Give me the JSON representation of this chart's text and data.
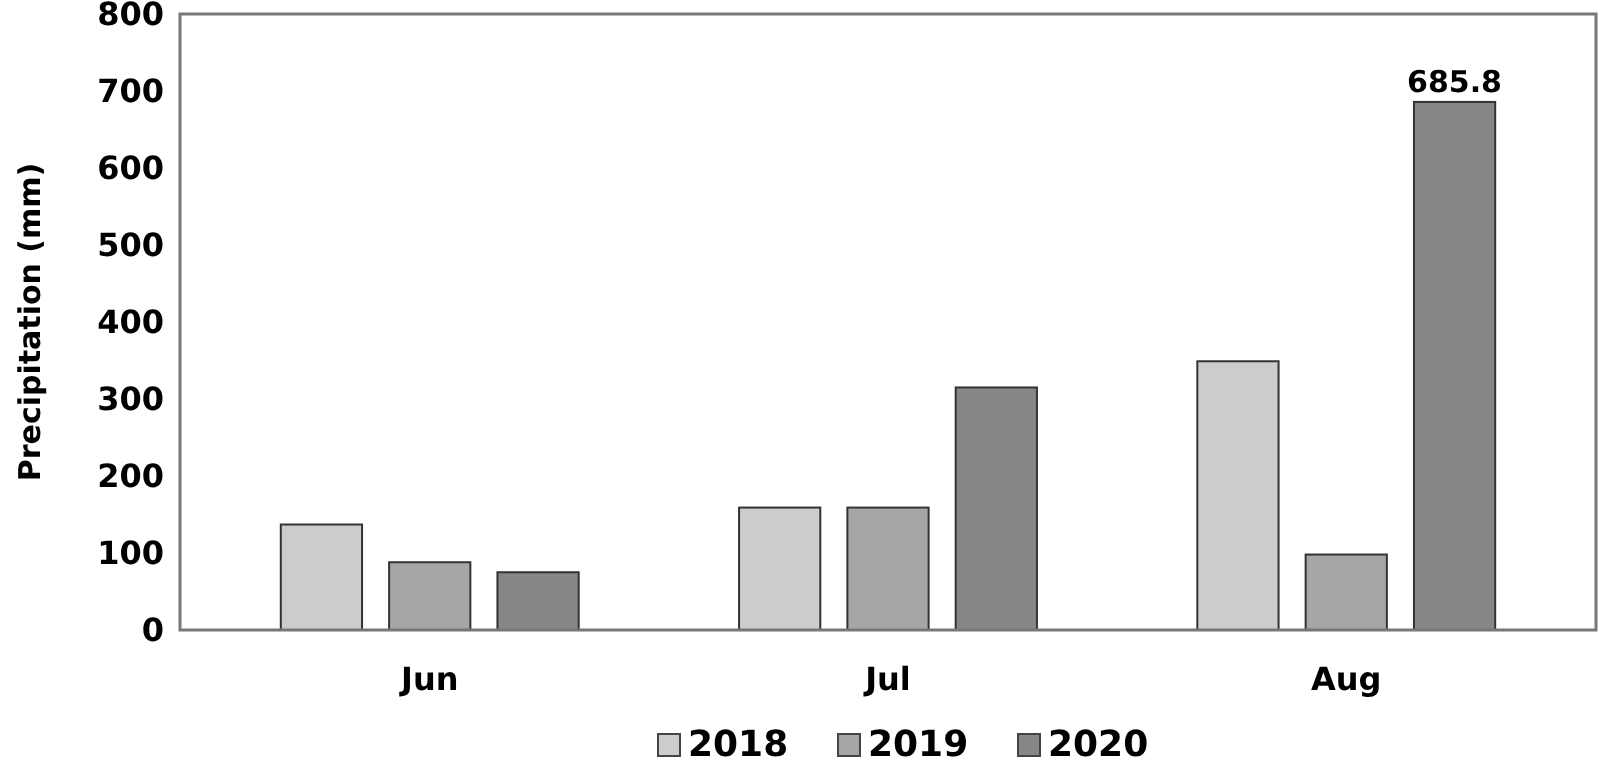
{
  "chart_data": {
    "type": "bar",
    "ylabel": "Precipitation (mm)",
    "categories": [
      "Jun",
      "Jul",
      "Aug"
    ],
    "series": [
      {
        "name": "2018",
        "color": "#cccccc",
        "values": [
          137,
          159,
          349
        ]
      },
      {
        "name": "2019",
        "color": "#a6a6a6",
        "values": [
          88,
          159,
          98
        ]
      },
      {
        "name": "2020",
        "color": "#878787",
        "values": [
          75,
          315,
          685.8
        ],
        "value_labels": [
          null,
          null,
          "685.8"
        ]
      }
    ],
    "ylim": [
      0,
      800
    ],
    "yticks": [
      0,
      100,
      200,
      300,
      400,
      500,
      600,
      700,
      800
    ],
    "grid": false,
    "legend": "bottom"
  }
}
